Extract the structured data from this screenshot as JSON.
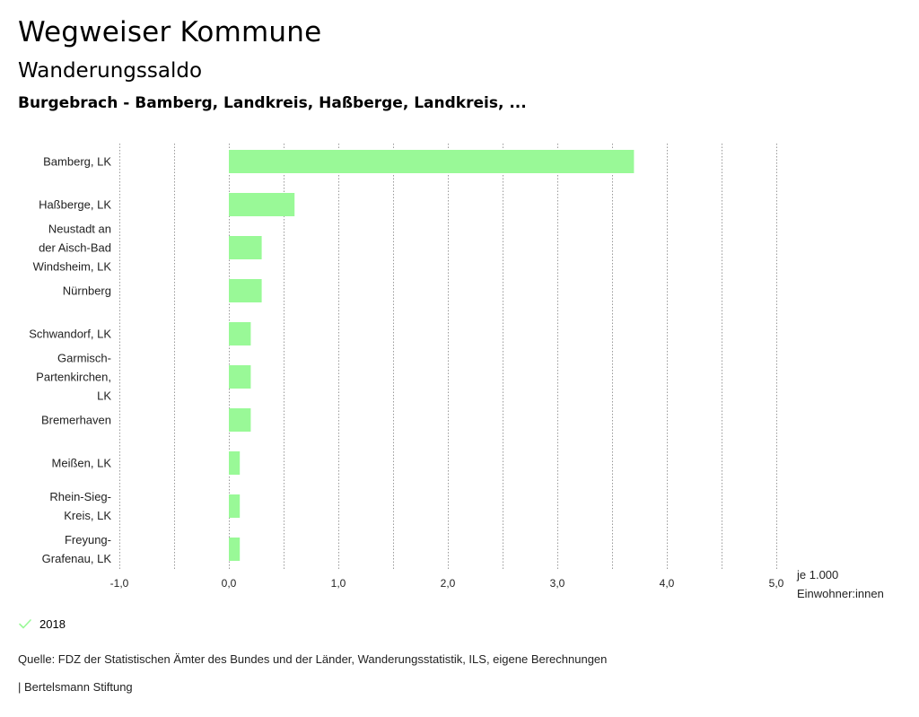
{
  "header": {
    "title": "Wegweiser Kommune",
    "subtitle": "Wanderungssaldo",
    "subsubtitle": "Burgebrach - Bamberg, Landkreis, Haßberge, Landkreis, ..."
  },
  "chart_data": {
    "type": "bar",
    "orientation": "horizontal",
    "categories": [
      [
        "Bamberg, LK"
      ],
      [
        "Haßberge, LK"
      ],
      [
        "Neustadt an",
        "der Aisch-Bad",
        "Windsheim, LK"
      ],
      [
        "Nürnberg"
      ],
      [
        "Schwandorf, LK"
      ],
      [
        "Garmisch-",
        "Partenkirchen,",
        "LK"
      ],
      [
        "Bremerhaven"
      ],
      [
        "Meißen, LK"
      ],
      [
        "Rhein-Sieg-",
        "Kreis, LK"
      ],
      [
        "Freyung-",
        "Grafenau, LK"
      ]
    ],
    "series": [
      {
        "name": "2018",
        "color": "#99f997",
        "values": [
          3.7,
          0.6,
          0.3,
          0.3,
          0.2,
          0.2,
          0.2,
          0.1,
          0.1,
          0.1
        ]
      }
    ],
    "xlim": [
      -1.0,
      5.0
    ],
    "xticks": [
      {
        "value": -1.0,
        "label": "-1,0"
      },
      {
        "value": 0.0,
        "label": "0,0"
      },
      {
        "value": 1.0,
        "label": "1,0"
      },
      {
        "value": 2.0,
        "label": "2,0"
      },
      {
        "value": 3.0,
        "label": "3,0"
      },
      {
        "value": 4.0,
        "label": "4,0"
      },
      {
        "value": 5.0,
        "label": "5,0"
      }
    ],
    "minor_gridlines": [
      -0.5,
      0.5,
      1.5,
      2.5,
      3.5,
      4.5
    ],
    "grid": true,
    "xlabel": [
      "je 1.000",
      "Einwohner:innen"
    ],
    "legend_position": "bottom-left"
  },
  "legend": {
    "label": "2018",
    "color": "#99f997"
  },
  "footer": {
    "source": "Quelle: FDZ der Statistischen Ämter des Bundes und der Länder, Wanderungsstatistik, ILS, eigene Berechnungen",
    "credit": "| Bertelsmann Stiftung"
  }
}
